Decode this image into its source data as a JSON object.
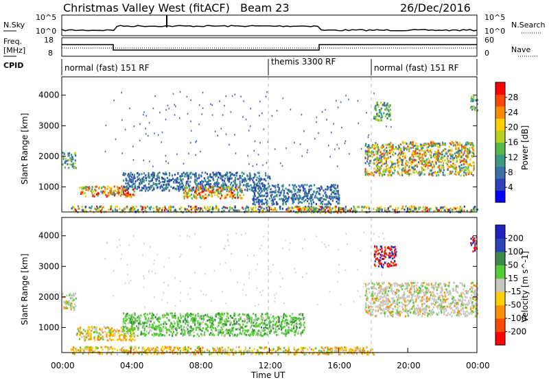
{
  "header": {
    "title": "Christmas Valley West (fitACF)",
    "beam": "Beam 23",
    "date": "26/Dec/2016"
  },
  "nsky_panel": {
    "left_label": "N.Sky",
    "right_label": "N.Search",
    "left_ticks": [
      "10^5",
      "10^0"
    ],
    "right_ticks": [
      "10^5",
      "10^0"
    ]
  },
  "freq_panel": {
    "left_label_1": "Freq.",
    "left_label_2": "[MHz]",
    "right_label": "Nave",
    "left_ticks": [
      "18",
      "8"
    ],
    "right_ticks": [
      "60",
      "0"
    ]
  },
  "cpid": {
    "label": "CPID",
    "segments": [
      {
        "text": "normal (fast) 151 RF",
        "start_hour": 0
      },
      {
        "text": "themis 3300 RF",
        "start_hour": 12
      },
      {
        "text": "normal (fast) 151 RF",
        "start_hour": 18
      }
    ]
  },
  "time_axis": {
    "label": "Time UT",
    "ticks": [
      "00:00",
      "04:00",
      "08:00",
      "12:00",
      "16:00",
      "20:00",
      "00:00"
    ]
  },
  "chart_data": [
    {
      "type": "heatmap",
      "name": "power",
      "ylabel": "Slant Range [km]",
      "yticks": [
        "1000",
        "2000",
        "3000",
        "4000"
      ],
      "colorbar_label": "Power [dB]",
      "colorbar_ticks": [
        "4",
        "8",
        "12",
        "16",
        "20",
        "24",
        "28"
      ],
      "colors": [
        "#0000ff",
        "#2a43b8",
        "#3a6fa8",
        "#3c9a82",
        "#58b94a",
        "#b8d020",
        "#ffd000",
        "#ff8c00",
        "#ff4a00",
        "#ff0000"
      ],
      "regions": [
        {
          "t0": 0.0,
          "t1": 0.8,
          "r0": 1650,
          "r1": 2150,
          "level": "medium"
        },
        {
          "t0": 1.0,
          "t1": 4.2,
          "r0": 700,
          "r1": 1050,
          "level": "high"
        },
        {
          "t0": 3.5,
          "t1": 12.0,
          "r0": 900,
          "r1": 1500,
          "level": "low"
        },
        {
          "t0": 7.0,
          "t1": 10.5,
          "r0": 650,
          "r1": 1050,
          "level": "high"
        },
        {
          "t0": 11.0,
          "t1": 16.0,
          "r0": 450,
          "r1": 1100,
          "level": "low"
        },
        {
          "t0": 0.5,
          "t1": 24.0,
          "r0": 200,
          "r1": 400,
          "level": "mixed"
        },
        {
          "t0": 13.5,
          "t1": 16.5,
          "r0": 180,
          "r1": 350,
          "level": "high"
        },
        {
          "t0": 17.5,
          "t1": 23.8,
          "r0": 1400,
          "r1": 2500,
          "level": "medium-high"
        },
        {
          "t0": 18.0,
          "t1": 19.0,
          "r0": 3200,
          "r1": 3800,
          "level": "medium"
        },
        {
          "t0": 23.6,
          "t1": 24.0,
          "r0": 3500,
          "r1": 4000,
          "level": "medium"
        }
      ]
    },
    {
      "type": "heatmap",
      "name": "velocity",
      "ylabel": "Slant Range [km]",
      "yticks": [
        "1000",
        "2000",
        "3000",
        "4000"
      ],
      "colorbar_label": "Velocity [m s^-1]",
      "colorbar_ticks": [
        "200",
        "100",
        "50",
        "15",
        "-15",
        "-50",
        "-100",
        "-200"
      ],
      "colors": [
        "#2020c0",
        "#2a43b8",
        "#3a8a4a",
        "#55cc33",
        "#c8c8c0",
        "#ffd000",
        "#ff9000",
        "#ff4a00",
        "#ff0000"
      ],
      "regions": [
        {
          "t0": 0.0,
          "t1": 0.8,
          "r0": 1600,
          "r1": 2150,
          "level": "gray"
        },
        {
          "t0": 0.8,
          "t1": 4.2,
          "r0": 600,
          "r1": 1050,
          "level": "orange"
        },
        {
          "t0": 3.5,
          "t1": 14.0,
          "r0": 750,
          "r1": 1500,
          "level": "green"
        },
        {
          "t0": 0.5,
          "t1": 18.0,
          "r0": 150,
          "r1": 400,
          "level": "orange"
        },
        {
          "t0": 17.5,
          "t1": 24.0,
          "r0": 1400,
          "r1": 2500,
          "level": "gray"
        },
        {
          "t0": 18.0,
          "t1": 19.3,
          "r0": 3000,
          "r1": 3700,
          "level": "red"
        },
        {
          "t0": 23.6,
          "t1": 24.0,
          "r0": 3500,
          "r1": 4000,
          "level": "red"
        }
      ]
    }
  ]
}
